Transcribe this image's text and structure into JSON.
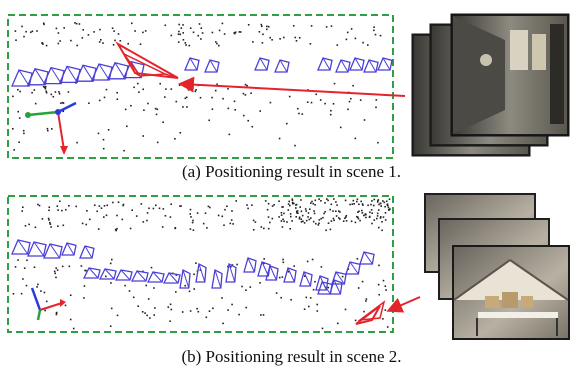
{
  "panels": [
    {
      "caption": "(a) Positioning result in scene 1.",
      "theme": "corridor"
    },
    {
      "caption": "(b) Positioning result in scene 2.",
      "theme": "attic"
    }
  ],
  "colors": {
    "box_border": "#2ea043",
    "trajectory": "#4a3fd6",
    "result_pose": "#e3242b",
    "points": "#222222",
    "axis_x": "#e3242b",
    "axis_y": "#27a33a",
    "axis_z": "#2a3bd9"
  },
  "icons": [
    "corridor-photo-stack",
    "attic-photo-stack",
    "coordinate-axes-icon"
  ]
}
